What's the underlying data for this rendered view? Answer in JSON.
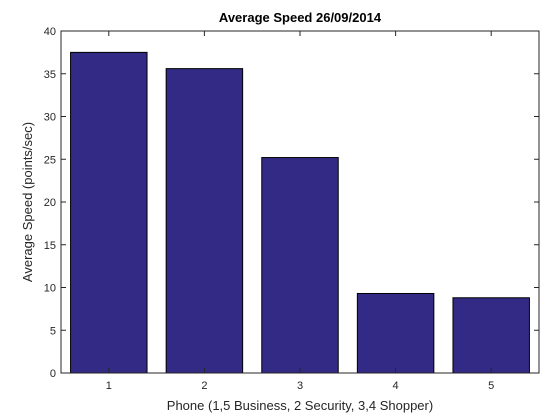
{
  "chart_data": {
    "type": "bar",
    "title": "Average Speed 26/09/2014",
    "xlabel": "Phone (1,5 Business, 2 Security, 3,4 Shopper)",
    "ylabel": "Average Speed (points/sec)",
    "categories": [
      "1",
      "2",
      "3",
      "4",
      "5"
    ],
    "values": [
      37.5,
      35.6,
      25.2,
      9.3,
      8.8
    ],
    "ylim": [
      0,
      40
    ],
    "yticks": [
      "0",
      "5",
      "10",
      "15",
      "20",
      "25",
      "30",
      "35",
      "40"
    ],
    "grid": false,
    "bar_color": "#332a85"
  }
}
